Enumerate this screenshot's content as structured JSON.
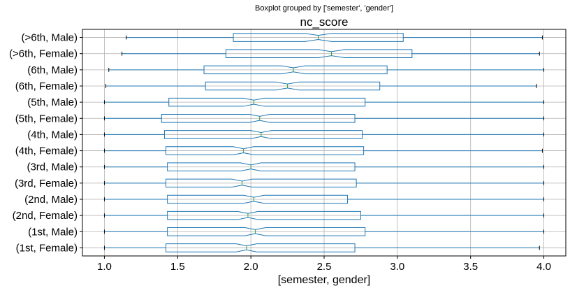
{
  "suptitle": "Boxplot grouped by ['semester', 'gender']",
  "chart_data": {
    "type": "boxplot",
    "orientation": "horizontal",
    "notched": true,
    "title": "nc_score",
    "xlabel": "[semester, gender]",
    "ylabel": "",
    "xlim": [
      0.85,
      4.15
    ],
    "xticks": [
      "1.0",
      "1.5",
      "2.0",
      "2.5",
      "3.0",
      "3.5",
      "4.0"
    ],
    "xtick_values": [
      1.0,
      1.5,
      2.0,
      2.5,
      3.0,
      3.5,
      4.0
    ],
    "grid": true,
    "box_color": "#1f77b4",
    "median_color": "#2ca02c",
    "categories": [
      "(1st, Female)",
      "(1st, Male)",
      "(2nd, Female)",
      "(2nd, Male)",
      "(3rd, Female)",
      "(3rd, Male)",
      "(4th, Female)",
      "(4th, Male)",
      "(5th, Female)",
      "(5th, Male)",
      "(6th, Female)",
      "(6th, Male)",
      "(>6th, Female)",
      "(>6th, Male)"
    ],
    "boxes": [
      {
        "whislo": 1.0,
        "q1": 1.42,
        "med": 1.97,
        "q3": 2.71,
        "whishi": 3.97,
        "notch": [
          1.9,
          2.04
        ]
      },
      {
        "whislo": 1.0,
        "q1": 1.43,
        "med": 2.03,
        "q3": 2.78,
        "whishi": 4.0,
        "notch": [
          1.96,
          2.1
        ]
      },
      {
        "whislo": 1.0,
        "q1": 1.43,
        "med": 1.98,
        "q3": 2.75,
        "whishi": 4.0,
        "notch": [
          1.91,
          2.05
        ]
      },
      {
        "whislo": 1.0,
        "q1": 1.43,
        "med": 2.02,
        "q3": 2.66,
        "whishi": 4.0,
        "notch": [
          1.95,
          2.09
        ]
      },
      {
        "whislo": 1.0,
        "q1": 1.42,
        "med": 1.94,
        "q3": 2.72,
        "whishi": 4.0,
        "notch": [
          1.87,
          2.01
        ]
      },
      {
        "whislo": 1.0,
        "q1": 1.43,
        "med": 2.0,
        "q3": 2.71,
        "whishi": 4.0,
        "notch": [
          1.93,
          2.07
        ]
      },
      {
        "whislo": 1.0,
        "q1": 1.42,
        "med": 1.95,
        "q3": 2.77,
        "whishi": 3.99,
        "notch": [
          1.88,
          2.02
        ]
      },
      {
        "whislo": 1.0,
        "q1": 1.41,
        "med": 2.07,
        "q3": 2.76,
        "whishi": 4.0,
        "notch": [
          2.0,
          2.14
        ]
      },
      {
        "whislo": 1.0,
        "q1": 1.39,
        "med": 2.06,
        "q3": 2.71,
        "whishi": 4.0,
        "notch": [
          1.99,
          2.13
        ]
      },
      {
        "whislo": 1.0,
        "q1": 1.44,
        "med": 2.02,
        "q3": 2.78,
        "whishi": 4.0,
        "notch": [
          1.95,
          2.09
        ]
      },
      {
        "whislo": 1.01,
        "q1": 1.69,
        "med": 2.25,
        "q3": 2.88,
        "whishi": 3.95,
        "notch": [
          2.17,
          2.33
        ]
      },
      {
        "whislo": 1.03,
        "q1": 1.68,
        "med": 2.29,
        "q3": 2.93,
        "whishi": 4.0,
        "notch": [
          2.21,
          2.37
        ]
      },
      {
        "whislo": 1.12,
        "q1": 1.83,
        "med": 2.55,
        "q3": 3.1,
        "whishi": 3.97,
        "notch": [
          2.46,
          2.64
        ]
      },
      {
        "whislo": 1.15,
        "q1": 1.88,
        "med": 2.46,
        "q3": 3.04,
        "whishi": 3.99,
        "notch": [
          2.37,
          2.55
        ]
      }
    ]
  }
}
